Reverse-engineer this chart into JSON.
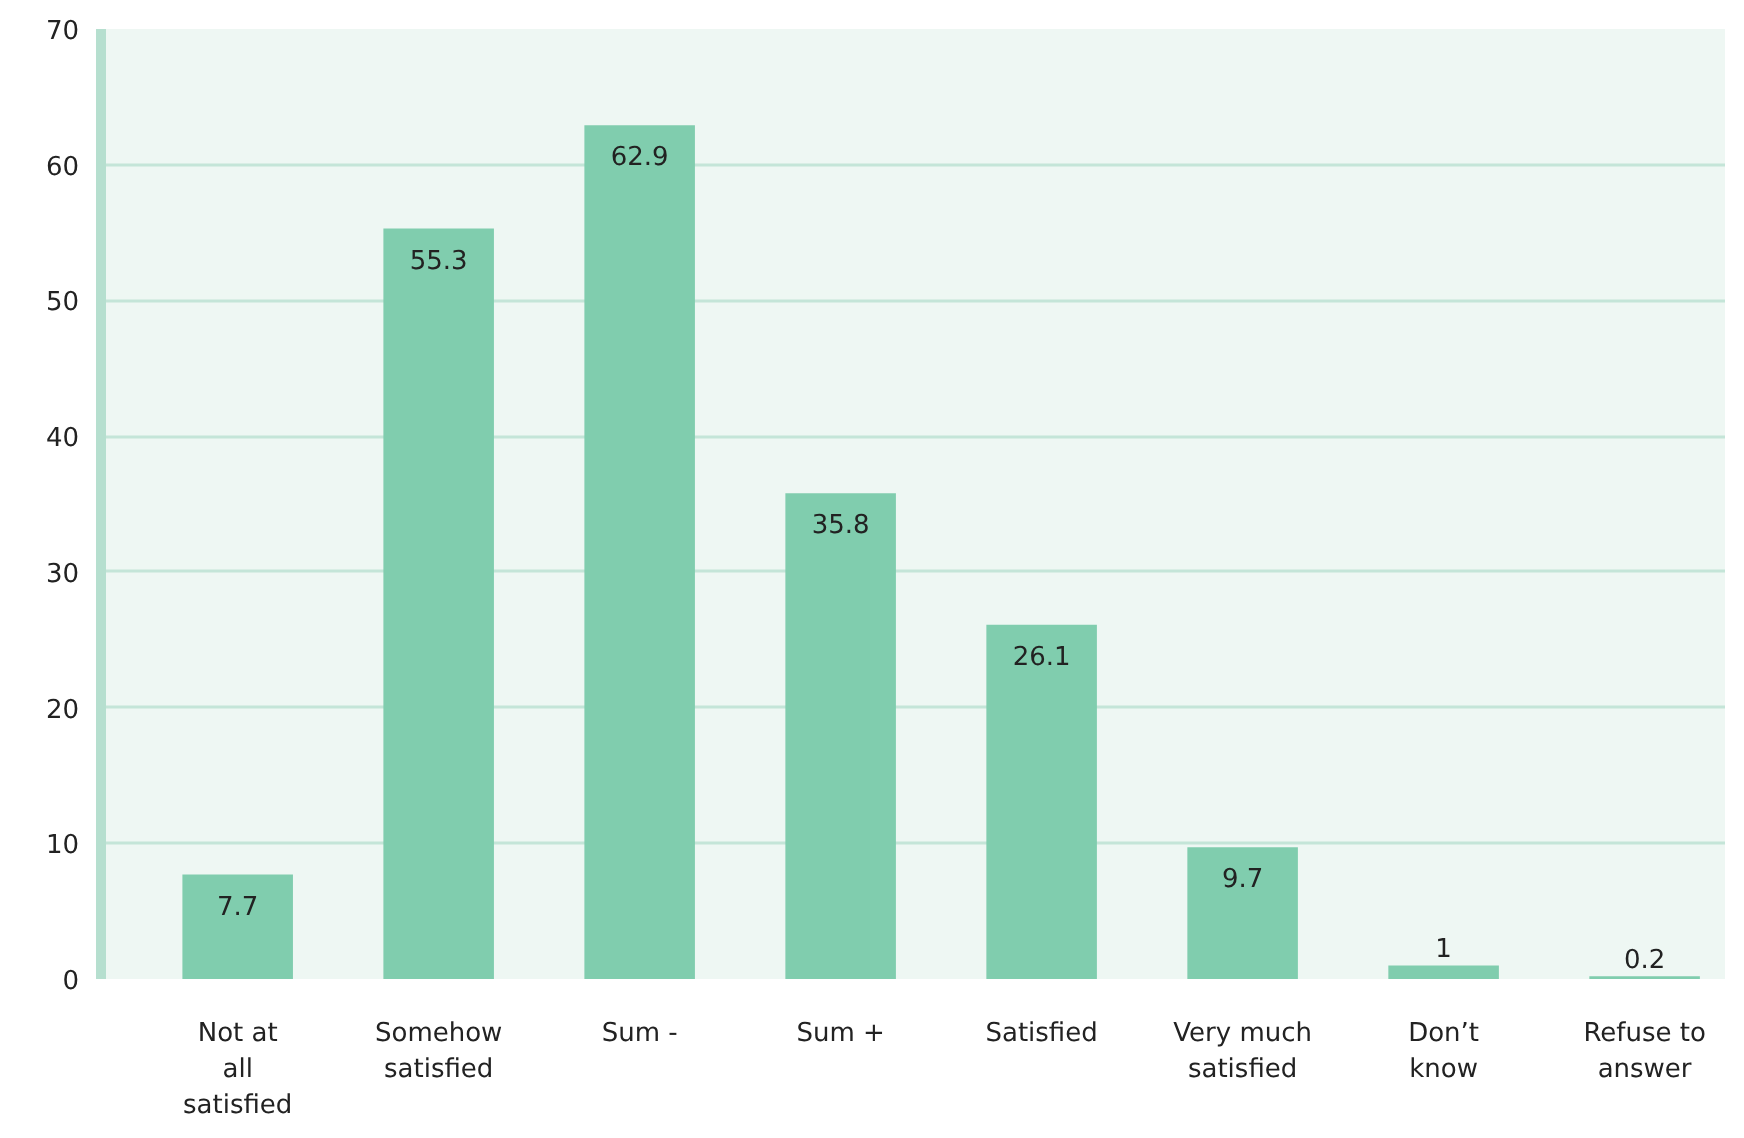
{
  "chart_data": {
    "type": "bar",
    "categories": [
      "Not at all satisfied",
      "Somehow satisfied",
      "Sum -",
      "Sum +",
      "Satisfied",
      "Very much satisfied",
      "Don’t know",
      "Refuse to answer"
    ],
    "values": [
      7.7,
      55.3,
      62.9,
      35.8,
      26.1,
      9.7,
      1,
      0.2
    ],
    "color": "#80cdae",
    "ylim": [
      0,
      70
    ],
    "yticks": [
      0,
      10,
      20,
      30,
      40,
      50,
      60,
      70
    ],
    "grid": "y",
    "data_labels": true
  }
}
